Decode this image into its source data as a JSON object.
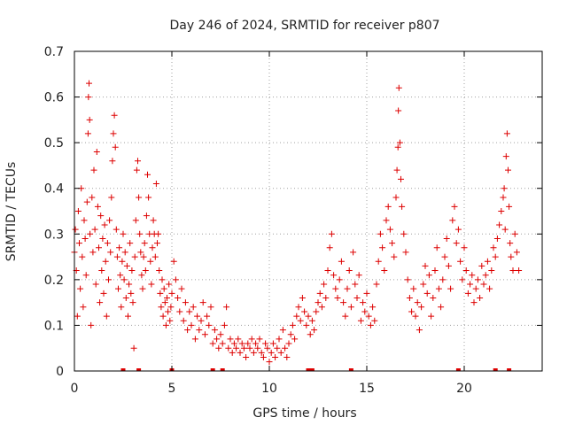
{
  "chart_data": {
    "type": "scatter",
    "title": "Day 246 of 2024, SRMTID for receiver p807",
    "xlabel": "GPS time / hours",
    "ylabel": "SRMTID / TECUs",
    "xlim": [
      0,
      24
    ],
    "ylim": [
      0,
      0.7
    ],
    "xticks": [
      0,
      5,
      10,
      15,
      20
    ],
    "yticks": [
      0,
      0.1,
      0.2,
      0.3,
      0.4,
      0.5,
      0.6,
      0.7
    ],
    "xtick_labels": [
      "0",
      "5",
      "10",
      "15",
      "20"
    ],
    "ytick_labels": [
      "0",
      "0.1",
      "0.2",
      "0.3",
      "0.4",
      "0.5",
      "0.6",
      "0.7"
    ],
    "grid": true,
    "marker": "+",
    "color": "#dd0000",
    "series": [
      {
        "name": "SRMTID",
        "points": [
          [
            0.0,
            0.26
          ],
          [
            0.05,
            0.31
          ],
          [
            0.1,
            0.22
          ],
          [
            0.15,
            0.12
          ],
          [
            0.2,
            0.35
          ],
          [
            0.25,
            0.28
          ],
          [
            0.3,
            0.18
          ],
          [
            0.35,
            0.4
          ],
          [
            0.4,
            0.25
          ],
          [
            0.45,
            0.14
          ],
          [
            0.5,
            0.33
          ],
          [
            0.55,
            0.29
          ],
          [
            0.6,
            0.21
          ],
          [
            0.65,
            0.37
          ],
          [
            0.7,
            0.52
          ],
          [
            0.72,
            0.6
          ],
          [
            0.75,
            0.63
          ],
          [
            0.78,
            0.55
          ],
          [
            0.8,
            0.3
          ],
          [
            0.85,
            0.1
          ],
          [
            0.9,
            0.38
          ],
          [
            0.95,
            0.26
          ],
          [
            1.0,
            0.44
          ],
          [
            1.05,
            0.31
          ],
          [
            1.1,
            0.19
          ],
          [
            1.15,
            0.48
          ],
          [
            1.2,
            0.36
          ],
          [
            1.25,
            0.27
          ],
          [
            1.3,
            0.15
          ],
          [
            1.35,
            0.34
          ],
          [
            1.4,
            0.22
          ],
          [
            1.45,
            0.29
          ],
          [
            1.5,
            0.17
          ],
          [
            1.55,
            0.32
          ],
          [
            1.6,
            0.24
          ],
          [
            1.65,
            0.12
          ],
          [
            1.7,
            0.28
          ],
          [
            1.75,
            0.2
          ],
          [
            1.8,
            0.33
          ],
          [
            1.85,
            0.26
          ],
          [
            1.9,
            0.38
          ],
          [
            1.95,
            0.46
          ],
          [
            2.0,
            0.52
          ],
          [
            2.05,
            0.56
          ],
          [
            2.1,
            0.49
          ],
          [
            2.15,
            0.31
          ],
          [
            2.2,
            0.25
          ],
          [
            2.25,
            0.18
          ],
          [
            2.3,
            0.27
          ],
          [
            2.35,
            0.21
          ],
          [
            2.4,
            0.14
          ],
          [
            2.45,
            0.24
          ],
          [
            2.5,
            0.3
          ],
          [
            2.55,
            0.2
          ],
          [
            2.6,
            0.26
          ],
          [
            2.65,
            0.16
          ],
          [
            2.7,
            0.23
          ],
          [
            2.75,
            0.12
          ],
          [
            2.8,
            0.19
          ],
          [
            2.85,
            0.28
          ],
          [
            2.9,
            0.17
          ],
          [
            2.95,
            0.22
          ],
          [
            3.0,
            0.15
          ],
          [
            3.05,
            0.05
          ],
          [
            3.1,
            0.25
          ],
          [
            3.15,
            0.33
          ],
          [
            3.2,
            0.44
          ],
          [
            3.25,
            0.46
          ],
          [
            3.3,
            0.38
          ],
          [
            3.35,
            0.3
          ],
          [
            3.4,
            0.26
          ],
          [
            3.45,
            0.21
          ],
          [
            3.5,
            0.18
          ],
          [
            3.55,
            0.25
          ],
          [
            3.6,
            0.28
          ],
          [
            3.65,
            0.22
          ],
          [
            3.7,
            0.34
          ],
          [
            3.75,
            0.43
          ],
          [
            3.8,
            0.38
          ],
          [
            3.85,
            0.3
          ],
          [
            3.9,
            0.24
          ],
          [
            3.95,
            0.19
          ],
          [
            4.0,
            0.27
          ],
          [
            4.05,
            0.33
          ],
          [
            4.1,
            0.3
          ],
          [
            4.15,
            0.25
          ],
          [
            4.2,
            0.41
          ],
          [
            4.25,
            0.28
          ],
          [
            4.3,
            0.3
          ],
          [
            4.35,
            0.22
          ],
          [
            4.4,
            0.17
          ],
          [
            4.45,
            0.14
          ],
          [
            4.5,
            0.2
          ],
          [
            4.55,
            0.12
          ],
          [
            4.6,
            0.18
          ],
          [
            4.65,
            0.15
          ],
          [
            4.7,
            0.1
          ],
          [
            4.75,
            0.16
          ],
          [
            4.8,
            0.13
          ],
          [
            4.85,
            0.19
          ],
          [
            4.9,
            0.11
          ],
          [
            4.95,
            0.14
          ],
          [
            5.0,
            0.17
          ],
          [
            5.1,
            0.24
          ],
          [
            5.2,
            0.2
          ],
          [
            5.3,
            0.16
          ],
          [
            5.4,
            0.13
          ],
          [
            5.5,
            0.18
          ],
          [
            5.6,
            0.11
          ],
          [
            5.7,
            0.15
          ],
          [
            5.8,
            0.09
          ],
          [
            5.9,
            0.13
          ],
          [
            6.0,
            0.1
          ],
          [
            6.1,
            0.14
          ],
          [
            6.2,
            0.07
          ],
          [
            6.3,
            0.12
          ],
          [
            6.4,
            0.09
          ],
          [
            6.5,
            0.11
          ],
          [
            6.6,
            0.15
          ],
          [
            6.7,
            0.08
          ],
          [
            6.8,
            0.12
          ],
          [
            6.9,
            0.1
          ],
          [
            7.0,
            0.14
          ],
          [
            7.1,
            0.06
          ],
          [
            7.2,
            0.09
          ],
          [
            7.3,
            0.07
          ],
          [
            7.4,
            0.05
          ],
          [
            7.5,
            0.08
          ],
          [
            7.6,
            0.06
          ],
          [
            7.7,
            0.1
          ],
          [
            7.8,
            0.14
          ],
          [
            7.9,
            0.05
          ],
          [
            8.0,
            0.07
          ],
          [
            8.1,
            0.04
          ],
          [
            8.2,
            0.06
          ],
          [
            8.3,
            0.05
          ],
          [
            8.4,
            0.07
          ],
          [
            8.5,
            0.04
          ],
          [
            8.6,
            0.06
          ],
          [
            8.7,
            0.05
          ],
          [
            8.8,
            0.03
          ],
          [
            8.9,
            0.06
          ],
          [
            9.0,
            0.05
          ],
          [
            9.1,
            0.07
          ],
          [
            9.2,
            0.04
          ],
          [
            9.3,
            0.06
          ],
          [
            9.4,
            0.05
          ],
          [
            9.5,
            0.07
          ],
          [
            9.6,
            0.04
          ],
          [
            9.7,
            0.03
          ],
          [
            9.8,
            0.06
          ],
          [
            9.9,
            0.05
          ],
          [
            10.0,
            0.02
          ],
          [
            10.1,
            0.04
          ],
          [
            10.2,
            0.06
          ],
          [
            10.3,
            0.03
          ],
          [
            10.4,
            0.05
          ],
          [
            10.5,
            0.07
          ],
          [
            10.6,
            0.04
          ],
          [
            10.7,
            0.09
          ],
          [
            10.8,
            0.05
          ],
          [
            10.9,
            0.03
          ],
          [
            11.0,
            0.06
          ],
          [
            11.1,
            0.08
          ],
          [
            11.2,
            0.1
          ],
          [
            11.3,
            0.07
          ],
          [
            11.4,
            0.12
          ],
          [
            11.5,
            0.14
          ],
          [
            11.6,
            0.11
          ],
          [
            11.7,
            0.16
          ],
          [
            11.8,
            0.13
          ],
          [
            11.9,
            0.1
          ],
          [
            12.0,
            0.12
          ],
          [
            12.1,
            0.08
          ],
          [
            12.2,
            0.11
          ],
          [
            12.3,
            0.09
          ],
          [
            12.4,
            0.13
          ],
          [
            12.5,
            0.15
          ],
          [
            12.6,
            0.17
          ],
          [
            12.7,
            0.14
          ],
          [
            12.8,
            0.19
          ],
          [
            12.9,
            0.16
          ],
          [
            13.0,
            0.22
          ],
          [
            13.1,
            0.27
          ],
          [
            13.2,
            0.3
          ],
          [
            13.3,
            0.21
          ],
          [
            13.4,
            0.18
          ],
          [
            13.5,
            0.16
          ],
          [
            13.6,
            0.2
          ],
          [
            13.7,
            0.24
          ],
          [
            13.8,
            0.15
          ],
          [
            13.9,
            0.12
          ],
          [
            14.0,
            0.18
          ],
          [
            14.1,
            0.22
          ],
          [
            14.2,
            0.14
          ],
          [
            14.3,
            0.26
          ],
          [
            14.4,
            0.19
          ],
          [
            14.5,
            0.16
          ],
          [
            14.6,
            0.21
          ],
          [
            14.7,
            0.11
          ],
          [
            14.8,
            0.15
          ],
          [
            14.9,
            0.13
          ],
          [
            15.0,
            0.17
          ],
          [
            15.1,
            0.12
          ],
          [
            15.2,
            0.1
          ],
          [
            15.3,
            0.14
          ],
          [
            15.4,
            0.11
          ],
          [
            15.5,
            0.19
          ],
          [
            15.6,
            0.24
          ],
          [
            15.7,
            0.3
          ],
          [
            15.8,
            0.27
          ],
          [
            15.9,
            0.22
          ],
          [
            16.0,
            0.33
          ],
          [
            16.1,
            0.36
          ],
          [
            16.2,
            0.31
          ],
          [
            16.3,
            0.28
          ],
          [
            16.4,
            0.25
          ],
          [
            16.5,
            0.38
          ],
          [
            16.55,
            0.44
          ],
          [
            16.6,
            0.49
          ],
          [
            16.62,
            0.57
          ],
          [
            16.65,
            0.62
          ],
          [
            16.7,
            0.5
          ],
          [
            16.75,
            0.42
          ],
          [
            16.8,
            0.36
          ],
          [
            16.9,
            0.3
          ],
          [
            17.0,
            0.26
          ],
          [
            17.1,
            0.2
          ],
          [
            17.2,
            0.16
          ],
          [
            17.3,
            0.13
          ],
          [
            17.4,
            0.18
          ],
          [
            17.5,
            0.12
          ],
          [
            17.6,
            0.15
          ],
          [
            17.7,
            0.09
          ],
          [
            17.8,
            0.14
          ],
          [
            17.9,
            0.19
          ],
          [
            18.0,
            0.23
          ],
          [
            18.1,
            0.17
          ],
          [
            18.2,
            0.21
          ],
          [
            18.3,
            0.12
          ],
          [
            18.4,
            0.16
          ],
          [
            18.5,
            0.22
          ],
          [
            18.6,
            0.27
          ],
          [
            18.7,
            0.18
          ],
          [
            18.8,
            0.14
          ],
          [
            18.9,
            0.2
          ],
          [
            19.0,
            0.25
          ],
          [
            19.1,
            0.29
          ],
          [
            19.2,
            0.23
          ],
          [
            19.3,
            0.18
          ],
          [
            19.4,
            0.33
          ],
          [
            19.5,
            0.36
          ],
          [
            19.6,
            0.28
          ],
          [
            19.7,
            0.31
          ],
          [
            19.8,
            0.24
          ],
          [
            19.9,
            0.2
          ],
          [
            20.0,
            0.27
          ],
          [
            20.1,
            0.22
          ],
          [
            20.2,
            0.17
          ],
          [
            20.3,
            0.19
          ],
          [
            20.4,
            0.21
          ],
          [
            20.5,
            0.15
          ],
          [
            20.6,
            0.18
          ],
          [
            20.7,
            0.2
          ],
          [
            20.8,
            0.16
          ],
          [
            20.9,
            0.23
          ],
          [
            21.0,
            0.19
          ],
          [
            21.1,
            0.21
          ],
          [
            21.2,
            0.24
          ],
          [
            21.3,
            0.18
          ],
          [
            21.4,
            0.22
          ],
          [
            21.5,
            0.27
          ],
          [
            21.6,
            0.25
          ],
          [
            21.7,
            0.29
          ],
          [
            21.8,
            0.32
          ],
          [
            21.9,
            0.35
          ],
          [
            22.0,
            0.38
          ],
          [
            22.05,
            0.4
          ],
          [
            22.1,
            0.31
          ],
          [
            22.15,
            0.47
          ],
          [
            22.2,
            0.52
          ],
          [
            22.25,
            0.44
          ],
          [
            22.3,
            0.36
          ],
          [
            22.35,
            0.28
          ],
          [
            22.4,
            0.25
          ],
          [
            22.5,
            0.22
          ],
          [
            22.6,
            0.3
          ],
          [
            22.7,
            0.26
          ],
          [
            22.8,
            0.22
          ]
        ]
      }
    ],
    "bottom_markers": [
      2.5,
      3.3,
      5.0,
      7.1,
      7.6,
      12.0,
      12.2,
      14.2,
      19.7,
      21.6,
      22.3
    ]
  }
}
